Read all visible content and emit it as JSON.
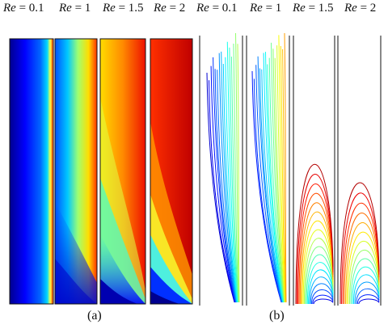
{
  "labels_a": [
    "Re = 0.1",
    "Re = 1",
    "Re = 1.5",
    "Re = 2"
  ],
  "labels_b": [
    "Re = 0.1",
    "Re = 1",
    "Re = 1.5",
    "Re = 2"
  ],
  "re_values": [
    0.1,
    1,
    1.5,
    2
  ],
  "captions": {
    "a": "(a)",
    "b": "(b)"
  },
  "colormap": [
    "#00008f",
    "#0000ff",
    "#00ffff",
    "#ffff00",
    "#ff0000",
    "#800000"
  ]
}
